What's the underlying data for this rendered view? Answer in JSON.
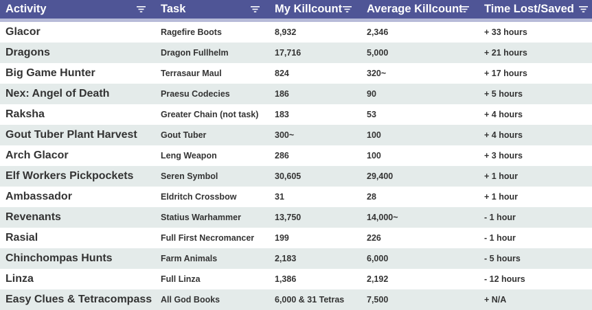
{
  "header": {
    "columns": [
      {
        "label": "Activity"
      },
      {
        "label": "Task"
      },
      {
        "label": "My Killcount"
      },
      {
        "label": "Average Killcount"
      },
      {
        "label": "Time Lost/Saved"
      }
    ]
  },
  "rows": [
    {
      "activity": "Glacor",
      "task": "Ragefire Boots",
      "my_kc": "8,932",
      "avg_kc": "2,346",
      "time": "+ 33 hours"
    },
    {
      "activity": "Dragons",
      "task": "Dragon Fullhelm",
      "my_kc": "17,716",
      "avg_kc": "5,000",
      "time": "+ 21 hours"
    },
    {
      "activity": "Big Game Hunter",
      "task": "Terrasaur Maul",
      "my_kc": "824",
      "avg_kc": "320~",
      "time": "+ 17 hours"
    },
    {
      "activity": "Nex: Angel of Death",
      "task": "Praesu Codecies",
      "my_kc": "186",
      "avg_kc": "90",
      "time": "+ 5 hours"
    },
    {
      "activity": "Raksha",
      "task": "Greater Chain (not task)",
      "my_kc": "183",
      "avg_kc": "53",
      "time": "+ 4 hours"
    },
    {
      "activity": "Gout Tuber Plant Harvest",
      "task": "Gout Tuber",
      "my_kc": "300~",
      "avg_kc": "100",
      "time": "+ 4 hours"
    },
    {
      "activity": "Arch Glacor",
      "task": "Leng Weapon",
      "my_kc": "286",
      "avg_kc": "100",
      "time": "+ 3 hours"
    },
    {
      "activity": "Elf Workers Pickpockets",
      "task": "Seren Symbol",
      "my_kc": "30,605",
      "avg_kc": "29,400",
      "time": "+ 1 hour"
    },
    {
      "activity": "Ambassador",
      "task": "Eldritch Crossbow",
      "my_kc": "31",
      "avg_kc": "28",
      "time": "+ 1 hour"
    },
    {
      "activity": "Revenants",
      "task": "Statius Warhammer",
      "my_kc": "13,750",
      "avg_kc": "14,000~",
      "time": "- 1 hour"
    },
    {
      "activity": "Rasial",
      "task": "Full First Necromancer",
      "my_kc": "199",
      "avg_kc": "226",
      "time": "- 1 hour"
    },
    {
      "activity": "Chinchompas Hunts",
      "task": "Farm Animals",
      "my_kc": "2,183",
      "avg_kc": "6,000",
      "time": "- 5 hours"
    },
    {
      "activity": "Linza",
      "task": "Full Linza",
      "my_kc": "1,386",
      "avg_kc": "2,192",
      "time": "- 12 hours"
    },
    {
      "activity": "Easy Clues & Tetracompass",
      "task": "All God Books",
      "my_kc": "6,000 & 31 Tetras",
      "avg_kc": "7,500",
      "time": "+ N/A"
    }
  ]
}
